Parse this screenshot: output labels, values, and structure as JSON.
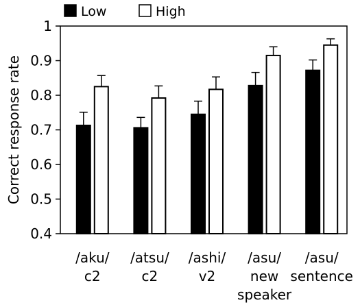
{
  "chart_data": {
    "type": "bar",
    "title": "",
    "xlabel": "",
    "ylabel": "Correct response rate",
    "ylim": [
      0.4,
      1.0
    ],
    "yticks": [
      "0.4",
      "0.5",
      "0.6",
      "0.7",
      "0.8",
      "0.9",
      "1"
    ],
    "ytick_values": [
      0.4,
      0.5,
      0.6,
      0.7,
      0.8,
      0.9,
      1.0
    ],
    "grid": false,
    "legend_position": "top-left, above plot",
    "categories": [
      [
        "/aku/",
        "c2"
      ],
      [
        "/atsu/",
        "c2"
      ],
      [
        "/ashi/",
        "v2"
      ],
      [
        "/asu/",
        "new",
        "speaker"
      ],
      [
        "/asu/",
        "sentence"
      ]
    ],
    "series": [
      {
        "name": "Low",
        "fill": "#000000",
        "values": [
          0.713,
          0.706,
          0.745,
          0.828,
          0.872
        ],
        "errors": [
          0.038,
          0.03,
          0.038,
          0.038,
          0.03
        ]
      },
      {
        "name": "High",
        "fill": "#ffffff",
        "values": [
          0.825,
          0.792,
          0.817,
          0.915,
          0.945
        ],
        "errors": [
          0.032,
          0.035,
          0.036,
          0.025,
          0.018
        ]
      }
    ]
  }
}
